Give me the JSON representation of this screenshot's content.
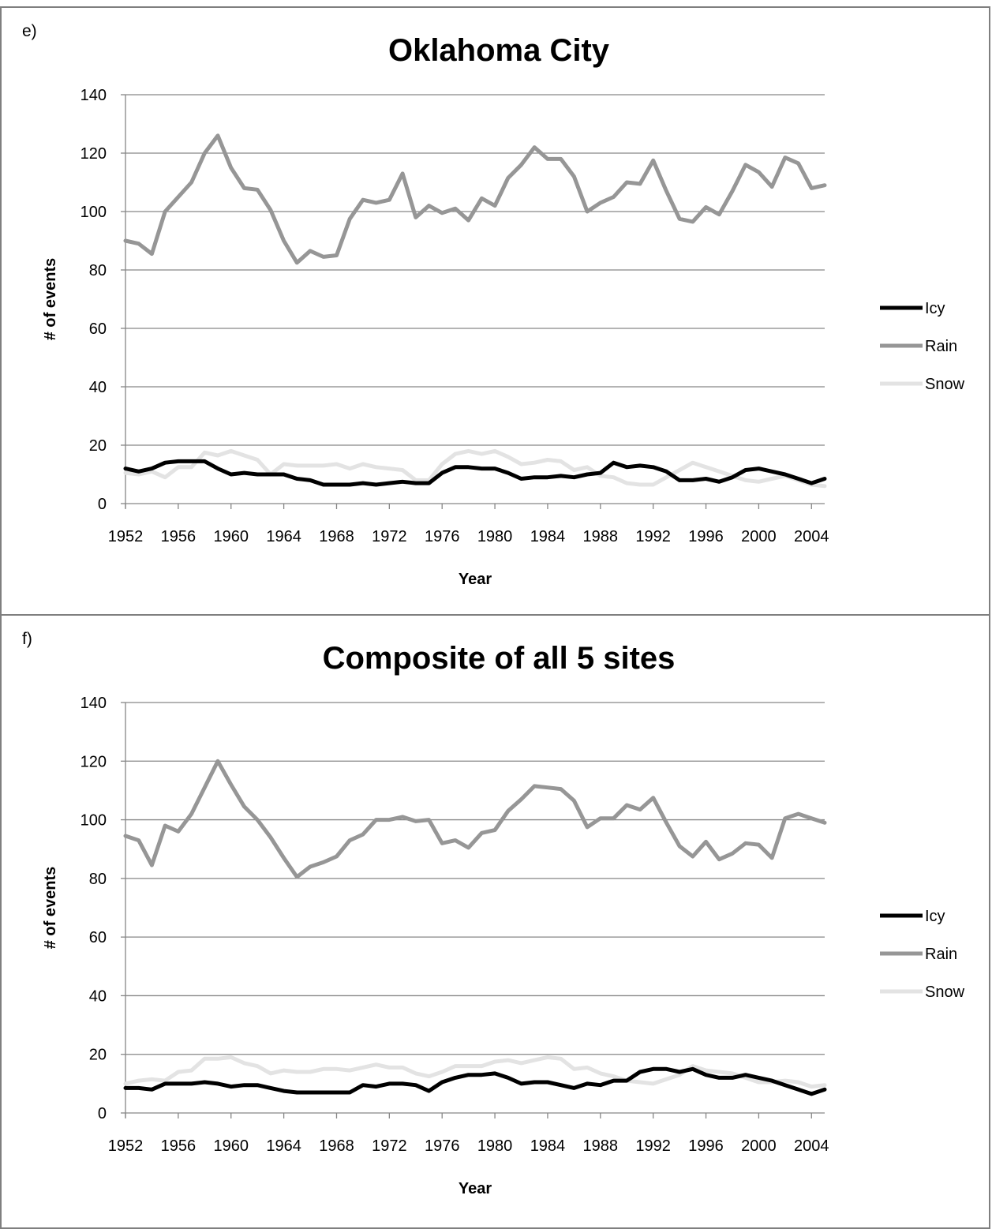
{
  "panels": [
    {
      "label": "e)"
    },
    {
      "label": "f)"
    }
  ],
  "colors": {
    "Icy": "#000000",
    "Rain": "#969696",
    "Snow": "#e3e3e3"
  },
  "chart_data": [
    {
      "type": "line",
      "title": "Oklahoma City",
      "xlabel": "Year",
      "ylabel": "# of events",
      "ylim": [
        0,
        140
      ],
      "yticks": [
        0,
        20,
        40,
        60,
        80,
        100,
        120,
        140
      ],
      "xlim": [
        1952,
        2005
      ],
      "xticks": [
        1952,
        1956,
        1960,
        1964,
        1968,
        1972,
        1976,
        1980,
        1984,
        1988,
        1992,
        1996,
        2000,
        2004
      ],
      "grid": true,
      "legend_position": "right",
      "x": [
        1952,
        1953,
        1954,
        1955,
        1956,
        1957,
        1958,
        1959,
        1960,
        1961,
        1962,
        1963,
        1964,
        1965,
        1966,
        1967,
        1968,
        1969,
        1970,
        1971,
        1972,
        1973,
        1974,
        1975,
        1976,
        1977,
        1978,
        1979,
        1980,
        1981,
        1982,
        1983,
        1984,
        1985,
        1986,
        1987,
        1988,
        1989,
        1990,
        1991,
        1992,
        1993,
        1994,
        1995,
        1996,
        1997,
        1998,
        1999,
        2000,
        2001,
        2002,
        2003,
        2004,
        2005
      ],
      "series": [
        {
          "name": "Icy",
          "values": [
            12,
            11,
            12,
            14,
            14.5,
            14.5,
            14.5,
            12,
            10,
            10.5,
            10,
            10,
            10,
            8.5,
            8,
            6.5,
            6.5,
            6.5,
            7,
            6.5,
            7,
            7.5,
            7,
            7,
            10.5,
            12.5,
            12.5,
            12,
            12,
            10.5,
            8.5,
            9,
            9,
            9.5,
            9,
            10,
            10.5,
            14,
            12.5,
            13,
            12.5,
            11,
            8,
            8,
            8.5,
            7.5,
            9,
            11.5,
            12,
            11,
            10,
            8.5,
            7,
            8.5
          ]
        },
        {
          "name": "Rain",
          "values": [
            90,
            89,
            85.5,
            100,
            105,
            110,
            120,
            126,
            115,
            108,
            107.5,
            100.5,
            90,
            82.5,
            86.5,
            84.5,
            85,
            97.5,
            104,
            103,
            104,
            113,
            98,
            102,
            99.5,
            101,
            97,
            104.5,
            102,
            111.5,
            116,
            122,
            118,
            118,
            112,
            100,
            103,
            105,
            110,
            109.5,
            117.5,
            107,
            97.5,
            96.5,
            101.5,
            99,
            107,
            116,
            113.5,
            108.5,
            118.5,
            116.5,
            108,
            109
          ]
        },
        {
          "name": "Snow",
          "values": [
            10.5,
            10,
            11,
            9,
            12.5,
            12.5,
            17.5,
            16.5,
            18,
            16.5,
            15,
            10,
            13.5,
            13,
            13,
            13,
            13.5,
            12,
            13.5,
            12.5,
            12,
            11.5,
            8,
            8,
            13.5,
            17,
            18,
            17,
            18,
            16,
            13.5,
            14,
            15,
            14.5,
            11.5,
            12.5,
            9.5,
            9,
            7,
            6.5,
            6.5,
            9,
            11.5,
            14,
            12.5,
            11,
            9.5,
            8,
            7.5,
            8.5,
            9.5,
            8,
            6.5,
            6
          ]
        }
      ]
    },
    {
      "type": "line",
      "title": "Composite of all 5 sites",
      "xlabel": "Year",
      "ylabel": "# of events",
      "ylim": [
        0,
        140
      ],
      "yticks": [
        0,
        20,
        40,
        60,
        80,
        100,
        120,
        140
      ],
      "xlim": [
        1952,
        2005
      ],
      "xticks": [
        1952,
        1956,
        1960,
        1964,
        1968,
        1972,
        1976,
        1980,
        1984,
        1988,
        1992,
        1996,
        2000,
        2004
      ],
      "grid": true,
      "legend_position": "right",
      "x": [
        1952,
        1953,
        1954,
        1955,
        1956,
        1957,
        1958,
        1959,
        1960,
        1961,
        1962,
        1963,
        1964,
        1965,
        1966,
        1967,
        1968,
        1969,
        1970,
        1971,
        1972,
        1973,
        1974,
        1975,
        1976,
        1977,
        1978,
        1979,
        1980,
        1981,
        1982,
        1983,
        1984,
        1985,
        1986,
        1987,
        1988,
        1989,
        1990,
        1991,
        1992,
        1993,
        1994,
        1995,
        1996,
        1997,
        1998,
        1999,
        2000,
        2001,
        2002,
        2003,
        2004,
        2005
      ],
      "series": [
        {
          "name": "Icy",
          "values": [
            8.5,
            8.5,
            8,
            10,
            10,
            10,
            10.5,
            10,
            9,
            9.5,
            9.5,
            8.5,
            7.5,
            7,
            7,
            7,
            7,
            7,
            9.5,
            9,
            10,
            10,
            9.5,
            7.5,
            10.5,
            12,
            13,
            13,
            13.5,
            12,
            10,
            10.5,
            10.5,
            9.5,
            8.5,
            10,
            9.5,
            11,
            11,
            14,
            15,
            15,
            14,
            15,
            13,
            12,
            12,
            13,
            12,
            11,
            9.5,
            8,
            6.5,
            8
          ]
        },
        {
          "name": "Rain",
          "values": [
            94.5,
            93,
            84.5,
            98,
            96,
            102,
            111,
            120,
            112,
            104.5,
            100,
            94,
            87,
            80.5,
            84,
            85.5,
            87.5,
            93,
            95,
            100,
            100,
            101,
            99.5,
            100,
            92,
            93,
            90.5,
            95.5,
            96.5,
            103,
            107,
            111.5,
            111,
            110.5,
            106.5,
            97.5,
            100.5,
            100.5,
            105,
            103.5,
            107.5,
            99,
            91,
            87.5,
            92.5,
            86.5,
            88.5,
            92,
            91.5,
            87,
            100.5,
            102,
            100.5,
            99
          ]
        },
        {
          "name": "Snow",
          "values": [
            10,
            11,
            11.5,
            11,
            14,
            14.5,
            18.5,
            18.5,
            19,
            17,
            16,
            13.5,
            14.5,
            14,
            14,
            15,
            15,
            14.5,
            15.5,
            16.5,
            15.5,
            15.5,
            13.5,
            12.5,
            14,
            16,
            16,
            16,
            17.5,
            18,
            17,
            18,
            19,
            18.5,
            15,
            15.5,
            13.5,
            12.5,
            11,
            10.5,
            10,
            11.5,
            13,
            16,
            14.5,
            14,
            13.5,
            12,
            10.5,
            10.5,
            11,
            10.5,
            9,
            9.5
          ]
        }
      ]
    }
  ]
}
